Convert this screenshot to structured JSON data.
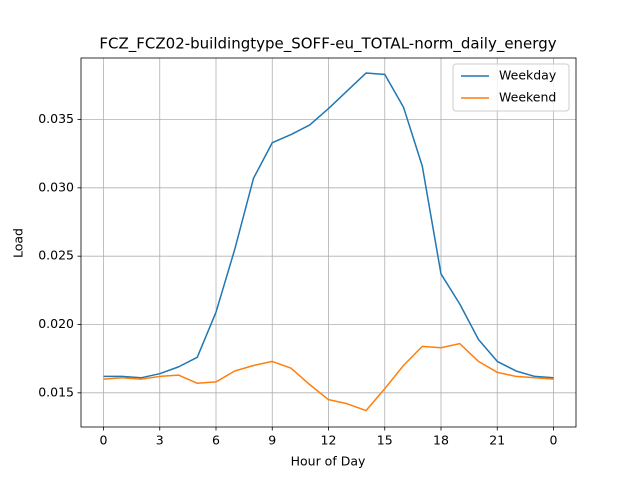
{
  "chart_data": {
    "type": "line",
    "title": "FCZ_FCZ02-buildingtype_SOFF-eu_TOTAL-norm_daily_energy",
    "x_label": "Hour of Day",
    "y_label": "Load",
    "x": [
      0,
      1,
      2,
      3,
      4,
      5,
      6,
      7,
      8,
      9,
      10,
      11,
      12,
      13,
      14,
      15,
      16,
      17,
      18,
      19,
      20,
      21,
      22,
      23,
      24
    ],
    "series": [
      {
        "name": "Weekday",
        "color": "#1f77b4",
        "values": [
          0.0162,
          0.0162,
          0.0161,
          0.0164,
          0.0169,
          0.0176,
          0.0209,
          0.0255,
          0.0307,
          0.0333,
          0.0339,
          0.0346,
          0.0358,
          0.0371,
          0.0384,
          0.0383,
          0.0359,
          0.0316,
          0.0237,
          0.0215,
          0.0189,
          0.0173,
          0.0166,
          0.0162,
          0.0161
        ]
      },
      {
        "name": "Weekend",
        "color": "#ff7f0e",
        "values": [
          0.016,
          0.0161,
          0.016,
          0.0162,
          0.0163,
          0.0157,
          0.0158,
          0.0166,
          0.017,
          0.0173,
          0.0168,
          0.0156,
          0.0145,
          0.0142,
          0.0137,
          0.0153,
          0.017,
          0.0184,
          0.0183,
          0.0186,
          0.0173,
          0.0165,
          0.0162,
          0.0161,
          0.016
        ]
      }
    ],
    "xlim": [
      -1.2,
      25.2
    ],
    "xticks": [
      0,
      3,
      6,
      9,
      12,
      15,
      18,
      21,
      {
        "value": 24,
        "label": "0"
      }
    ],
    "ylim": [
      0.0125,
      0.0395
    ],
    "yticks": [
      0.015,
      {
        "value": 0.02,
        "label": "0.020"
      },
      0.025,
      {
        "value": 0.03,
        "label": "0.030"
      },
      0.035
    ],
    "grid": true,
    "legend": "upper right"
  }
}
